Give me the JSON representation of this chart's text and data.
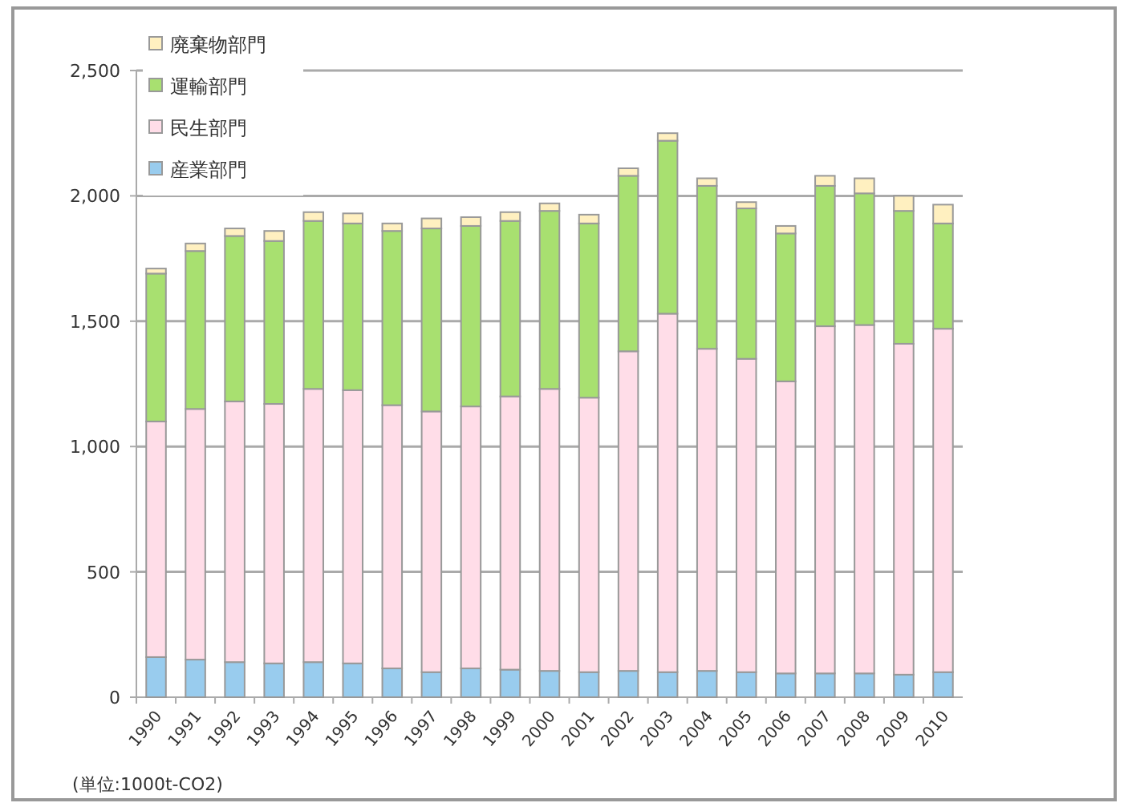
{
  "chart_data": {
    "type": "bar",
    "stacked": true,
    "categories": [
      "1990",
      "1991",
      "1992",
      "1993",
      "1994",
      "1995",
      "1996",
      "1997",
      "1998",
      "1999",
      "2000",
      "2001",
      "2002",
      "2003",
      "2004",
      "2005",
      "2006",
      "2007",
      "2008",
      "2009",
      "2010"
    ],
    "series": [
      {
        "name": "産業部門",
        "color": "#99ccee",
        "values": [
          160,
          150,
          140,
          135,
          140,
          135,
          115,
          100,
          115,
          110,
          105,
          100,
          105,
          100,
          105,
          100,
          95,
          95,
          95,
          90,
          100
        ]
      },
      {
        "name": "民生部門",
        "color": "#ffdde8",
        "values": [
          940,
          1000,
          1040,
          1035,
          1090,
          1090,
          1050,
          1040,
          1045,
          1090,
          1125,
          1095,
          1275,
          1430,
          1285,
          1250,
          1165,
          1385,
          1390,
          1320,
          1370
        ]
      },
      {
        "name": "運輸部門",
        "color": "#a8e070",
        "values": [
          590,
          630,
          660,
          650,
          670,
          665,
          695,
          730,
          720,
          700,
          710,
          695,
          700,
          690,
          650,
          600,
          590,
          560,
          525,
          530,
          420
        ]
      },
      {
        "name": "廃棄物部門",
        "color": "#fff0c0",
        "values": [
          20,
          30,
          30,
          40,
          35,
          40,
          30,
          40,
          35,
          35,
          30,
          35,
          30,
          30,
          30,
          25,
          30,
          40,
          60,
          60,
          75
        ]
      }
    ],
    "ylim": [
      0,
      2500
    ],
    "yticks": [
      0,
      500,
      {
        "value": 1000,
        "label": "1,000"
      },
      {
        "value": 1500,
        "label": "1,500"
      },
      {
        "value": 2000,
        "label": "2,000"
      },
      {
        "value": 2500,
        "label": "2,500"
      }
    ],
    "grid": "y",
    "legend": "top left",
    "annotations": [
      "(単位:1000t-CO2)"
    ]
  }
}
